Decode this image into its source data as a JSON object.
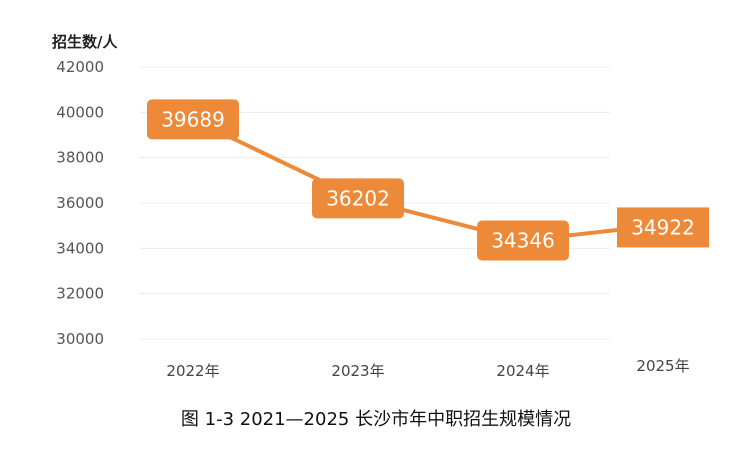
{
  "chart_data": {
    "type": "line",
    "ylabel": "招生数/人",
    "xlabel": "",
    "categories": [
      "2022年",
      "2023年",
      "2024年",
      "2025年"
    ],
    "series": [
      {
        "values": [
          39689,
          36202,
          34346,
          34922
        ],
        "color": "#ed8a3a"
      }
    ],
    "ylim": [
      30000,
      42000
    ],
    "yticks": [
      30000,
      32000,
      34000,
      36000,
      38000,
      40000,
      42000
    ],
    "grid": true,
    "data_labels": [
      "39689",
      "36202",
      "34346",
      "34922"
    ]
  },
  "caption": "图 1-3 2021—2025 长沙市年中职招生规模情况"
}
